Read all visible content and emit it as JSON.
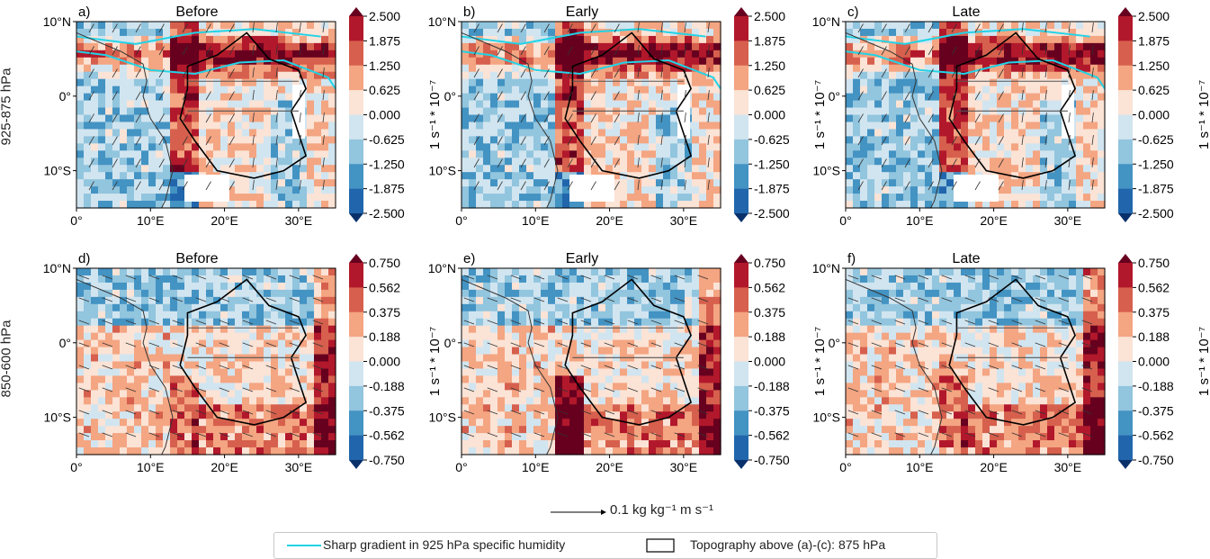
{
  "figure": {
    "row_labels": [
      "925-875 hPa",
      "850-600 hPa"
    ],
    "colorbar_label": "1 s⁻¹ * 10⁻⁷",
    "scale_arrow_label": "0.1 kg kg⁻¹ m s⁻¹",
    "legend": [
      {
        "label": "Sharp gradient in 925 hPa specific humidity",
        "color": "#22d3e6"
      },
      {
        "label": "Topography above (a)-(c): 875 hPa",
        "color": "#000000"
      }
    ],
    "palette": [
      "#08306b",
      "#2166ac",
      "#4393c3",
      "#92c5de",
      "#d1e5f0",
      "#fbe3d6",
      "#f4a582",
      "#d6604d",
      "#b2182b",
      "#67001f"
    ]
  },
  "chart_data": [
    {
      "type": "heatmap",
      "panel": "a)",
      "title": "Before",
      "row": "925-875 hPa",
      "x_ticks": [
        "0°",
        "10°E",
        "20°E",
        "30°E"
      ],
      "y_ticks": [
        "10°N",
        "0°",
        "10°S"
      ],
      "xlim": [
        0,
        35
      ],
      "ylim": [
        -15,
        10
      ],
      "colorbar_ticks": [
        "2.500",
        "1.875",
        "1.250",
        "0.625",
        "0.000",
        "-0.625",
        "-1.250",
        "-1.875",
        "-2.500"
      ]
    },
    {
      "type": "heatmap",
      "panel": "b)",
      "title": "Early",
      "row": "925-875 hPa",
      "x_ticks": [
        "0°",
        "10°E",
        "20°E",
        "30°E"
      ],
      "y_ticks": [
        "10°N",
        "0°",
        "10°S"
      ],
      "xlim": [
        0,
        35
      ],
      "ylim": [
        -15,
        10
      ],
      "colorbar_ticks": [
        "2.500",
        "1.875",
        "1.250",
        "0.625",
        "0.000",
        "-0.625",
        "-1.250",
        "-1.875",
        "-2.500"
      ]
    },
    {
      "type": "heatmap",
      "panel": "c)",
      "title": "Late",
      "row": "925-875 hPa",
      "x_ticks": [
        "0°",
        "10°E",
        "20°E",
        "30°E"
      ],
      "y_ticks": [
        "10°N",
        "0°",
        "10°S"
      ],
      "xlim": [
        0,
        35
      ],
      "ylim": [
        -15,
        10
      ],
      "colorbar_ticks": [
        "2.500",
        "1.875",
        "1.250",
        "0.625",
        "0.000",
        "-0.625",
        "-1.250",
        "-1.875",
        "-2.500"
      ]
    },
    {
      "type": "heatmap",
      "panel": "d)",
      "title": "Before",
      "row": "850-600 hPa",
      "x_ticks": [
        "0°",
        "10°E",
        "20°E",
        "30°E"
      ],
      "y_ticks": [
        "10°N",
        "0°",
        "10°S"
      ],
      "xlim": [
        0,
        35
      ],
      "ylim": [
        -15,
        10
      ],
      "colorbar_ticks": [
        "0.750",
        "0.562",
        "0.375",
        "0.188",
        "0.000",
        "-0.188",
        "-0.375",
        "-0.562",
        "-0.750"
      ]
    },
    {
      "type": "heatmap",
      "panel": "e)",
      "title": "Early",
      "row": "850-600 hPa",
      "x_ticks": [
        "0°",
        "10°E",
        "20°E",
        "30°E"
      ],
      "y_ticks": [
        "10°N",
        "0°",
        "10°S"
      ],
      "xlim": [
        0,
        35
      ],
      "ylim": [
        -15,
        10
      ],
      "colorbar_ticks": [
        "0.750",
        "0.562",
        "0.375",
        "0.188",
        "0.000",
        "-0.188",
        "-0.375",
        "-0.562",
        "-0.750"
      ]
    },
    {
      "type": "heatmap",
      "panel": "f)",
      "title": "Late",
      "row": "850-600 hPa",
      "x_ticks": [
        "0°",
        "10°E",
        "20°E",
        "30°E"
      ],
      "y_ticks": [
        "10°N",
        "0°",
        "10°S"
      ],
      "xlim": [
        0,
        35
      ],
      "ylim": [
        -15,
        10
      ],
      "colorbar_ticks": [
        "0.750",
        "0.562",
        "0.375",
        "0.188",
        "0.000",
        "-0.188",
        "-0.375",
        "-0.562",
        "-0.750"
      ]
    }
  ]
}
